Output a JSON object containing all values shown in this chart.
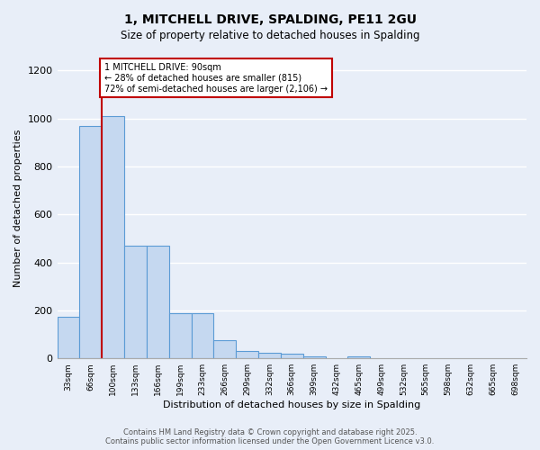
{
  "title": "1, MITCHELL DRIVE, SPALDING, PE11 2GU",
  "subtitle": "Size of property relative to detached houses in Spalding",
  "xlabel": "Distribution of detached houses by size in Spalding",
  "ylabel": "Number of detached properties",
  "categories": [
    "33sqm",
    "66sqm",
    "100sqm",
    "133sqm",
    "166sqm",
    "199sqm",
    "233sqm",
    "266sqm",
    "299sqm",
    "332sqm",
    "366sqm",
    "399sqm",
    "432sqm",
    "465sqm",
    "499sqm",
    "532sqm",
    "565sqm",
    "598sqm",
    "632sqm",
    "665sqm",
    "698sqm"
  ],
  "values": [
    175,
    970,
    1010,
    470,
    470,
    190,
    190,
    75,
    30,
    25,
    20,
    10,
    0,
    10,
    0,
    0,
    0,
    0,
    0,
    0,
    0
  ],
  "bar_color": "#c5d8f0",
  "bar_edge_color": "#5b9bd5",
  "background_color": "#e8eef8",
  "grid_color": "#ffffff",
  "vline_x": 1.5,
  "vline_color": "#c00000",
  "annotation_text": "1 MITCHELL DRIVE: 90sqm\n← 28% of detached houses are smaller (815)\n72% of semi-detached houses are larger (2,106) →",
  "annotation_box_color": "#c00000",
  "ylim": [
    0,
    1250
  ],
  "yticks": [
    0,
    200,
    400,
    600,
    800,
    1000,
    1200
  ],
  "footer_line1": "Contains HM Land Registry data © Crown copyright and database right 2025.",
  "footer_line2": "Contains public sector information licensed under the Open Government Licence v3.0."
}
